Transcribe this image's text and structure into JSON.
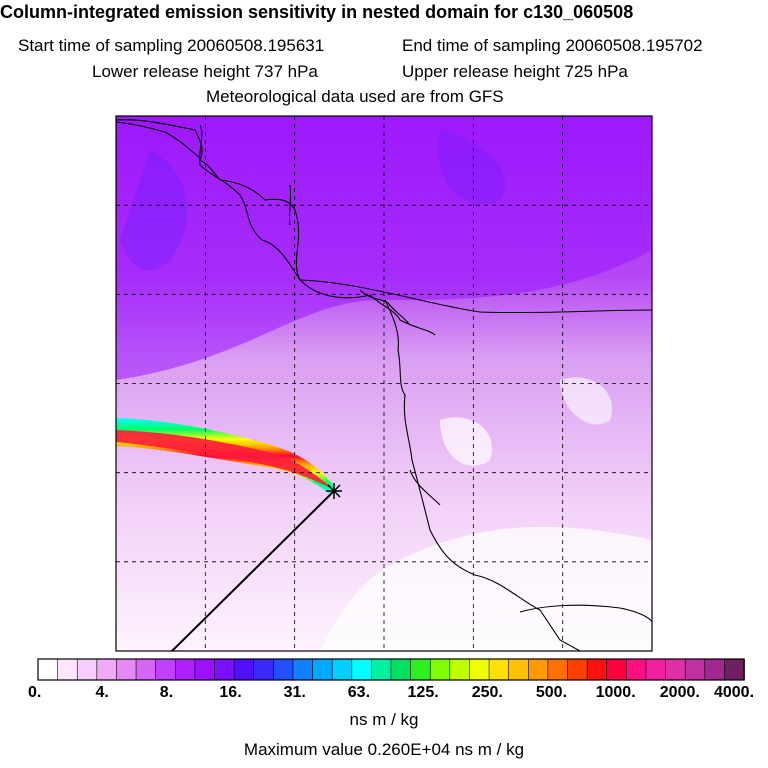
{
  "header": {
    "title": "Column-integrated emission sensitivity in nested domain for c130_060508",
    "start_label": "Start time of sampling 20060508.195631",
    "end_label": "End time of sampling 20060508.195702",
    "lower_label": "Lower release height  737 hPa",
    "upper_label": "Upper release height  725 hPa",
    "met_label": "Meteorological data used are from GFS"
  },
  "colors": {
    "plume": [
      "#00ffff",
      "#00ff66",
      "#ffff00",
      "#ff9900",
      "#ff0033",
      "#ff1a66"
    ],
    "background_low": "#ffffff",
    "background_mid": "#e9a9f3",
    "background_high": "#aa1fff",
    "grid": "#000000"
  },
  "chart_data": {
    "type": "heatmap",
    "title": "Column-integrated emission sensitivity in nested domain for c130_060508",
    "colorbar": {
      "tick_labels": [
        "0.",
        "4.",
        "8.",
        "16.",
        "31.",
        "63.",
        "125.",
        "250.",
        "500.",
        "1000.",
        "2000.",
        "4000."
      ],
      "units": "ns m / kg",
      "colors": [
        "#ffffff",
        "#fde6fe",
        "#f8ccfc",
        "#f0aaf8",
        "#e688f5",
        "#d566f6",
        "#c040fb",
        "#b020ff",
        "#9a10ff",
        "#7a10ff",
        "#5010ff",
        "#3a2aff",
        "#2050ff",
        "#1080ff",
        "#00a8ff",
        "#00d0ff",
        "#00ffff",
        "#00f0a0",
        "#00e060",
        "#30ef20",
        "#80ff00",
        "#c0ff00",
        "#f0ff00",
        "#ffe000",
        "#ffc000",
        "#ff9900",
        "#ff7000",
        "#ff4000",
        "#ff1010",
        "#ff0040",
        "#ff1080",
        "#f020a0",
        "#e030a8",
        "#c030a0",
        "#a02890",
        "#702060"
      ]
    },
    "maximum_label": "Maximum value  0.260E+04 ns m / kg",
    "maximum_value": 2600,
    "release_marker": "release point"
  }
}
